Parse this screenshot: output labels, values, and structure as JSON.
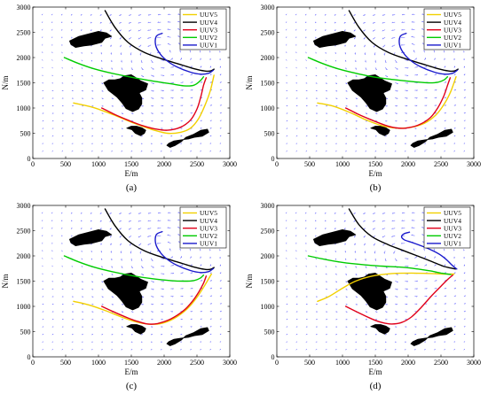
{
  "colors": {
    "UUV5": "#f2d000",
    "UUV4": "#000000",
    "UUV3": "#e0001a",
    "UUV2": "#00cc00",
    "UUV1": "#1a1acc",
    "flow_arrows": "#7070ff",
    "islands": "#000000",
    "axes": "#000000"
  },
  "chart_data": [
    {
      "type": "line",
      "panel_label": "(a)",
      "xlabel": "E/m",
      "ylabel": "N/m",
      "xlim": [
        0,
        3000
      ],
      "ylim": [
        0,
        3000
      ],
      "xticks": [
        0,
        500,
        1000,
        1500,
        2000,
        2500,
        3000
      ],
      "yticks": [
        0,
        500,
        1000,
        1500,
        2000,
        2500,
        3000
      ],
      "legend_position": "top-right",
      "series": [
        {
          "name": "UUV5",
          "x": [
            620,
            900,
            1200,
            1500,
            1800,
            2050,
            2250,
            2400,
            2520,
            2620,
            2700,
            2760
          ],
          "y": [
            1100,
            1020,
            880,
            720,
            580,
            500,
            520,
            600,
            780,
            1050,
            1330,
            1650
          ]
        },
        {
          "name": "UUV4",
          "x": [
            1100,
            1250,
            1450,
            1700,
            1950,
            2200,
            2400,
            2550,
            2650,
            2720,
            2760
          ],
          "y": [
            2930,
            2600,
            2300,
            2100,
            1980,
            1880,
            1800,
            1750,
            1730,
            1740,
            1770
          ]
        },
        {
          "name": "UUV3",
          "x": [
            1050,
            1250,
            1450,
            1650,
            1850,
            2050,
            2250,
            2400,
            2500,
            2560,
            2600,
            2640
          ],
          "y": [
            1000,
            870,
            760,
            660,
            590,
            560,
            620,
            760,
            980,
            1230,
            1450,
            1600
          ]
        },
        {
          "name": "UUV2",
          "x": [
            480,
            700,
            950,
            1200,
            1500,
            1800,
            2100,
            2300,
            2450,
            2550,
            2600
          ],
          "y": [
            2000,
            1880,
            1770,
            1690,
            1610,
            1540,
            1480,
            1440,
            1450,
            1540,
            1620
          ]
        },
        {
          "name": "UUV1",
          "x": [
            1970,
            1880,
            1870,
            1940,
            2050,
            2200,
            2400,
            2560,
            2680,
            2750
          ],
          "y": [
            2480,
            2420,
            2250,
            2070,
            1930,
            1810,
            1710,
            1670,
            1690,
            1750
          ]
        }
      ]
    },
    {
      "type": "line",
      "panel_label": "(b)",
      "xlabel": "E/m",
      "ylabel": "N/m",
      "xlim": [
        0,
        3000
      ],
      "ylim": [
        0,
        3000
      ],
      "xticks": [
        0,
        500,
        1000,
        1500,
        2000,
        2500,
        3000
      ],
      "yticks": [
        0,
        500,
        1000,
        1500,
        2000,
        2500,
        3000
      ],
      "legend_position": "top-right",
      "series": [
        {
          "name": "UUV5",
          "x": [
            620,
            850,
            1100,
            1350,
            1600,
            1850,
            2050,
            2250,
            2420,
            2550,
            2650,
            2730
          ],
          "y": [
            1100,
            1040,
            920,
            770,
            650,
            600,
            620,
            700,
            860,
            1080,
            1330,
            1620
          ]
        },
        {
          "name": "UUV4",
          "x": [
            1100,
            1250,
            1450,
            1700,
            1950,
            2200,
            2400,
            2550,
            2650,
            2720,
            2760
          ],
          "y": [
            2930,
            2600,
            2300,
            2100,
            1980,
            1880,
            1800,
            1750,
            1730,
            1740,
            1770
          ]
        },
        {
          "name": "UUV3",
          "x": [
            1050,
            1250,
            1450,
            1650,
            1800,
            1950,
            2150,
            2330,
            2450,
            2540,
            2600,
            2640
          ],
          "y": [
            1000,
            870,
            760,
            660,
            610,
            600,
            660,
            800,
            1000,
            1230,
            1450,
            1600
          ]
        },
        {
          "name": "UUV2",
          "x": [
            480,
            700,
            950,
            1200,
            1500,
            1800,
            2100,
            2300,
            2450,
            2550,
            2600
          ],
          "y": [
            2000,
            1880,
            1770,
            1690,
            1610,
            1560,
            1520,
            1500,
            1510,
            1560,
            1620
          ]
        },
        {
          "name": "UUV1",
          "x": [
            1970,
            1880,
            1870,
            1940,
            2050,
            2200,
            2400,
            2560,
            2680,
            2750
          ],
          "y": [
            2480,
            2420,
            2250,
            2070,
            1930,
            1810,
            1710,
            1670,
            1690,
            1750
          ]
        }
      ]
    },
    {
      "type": "line",
      "panel_label": "(c)",
      "xlabel": "E/m",
      "ylabel": "N/m",
      "xlim": [
        0,
        3000
      ],
      "ylim": [
        0,
        3000
      ],
      "xticks": [
        0,
        500,
        1000,
        1500,
        2000,
        2500,
        3000
      ],
      "yticks": [
        0,
        500,
        1000,
        1500,
        2000,
        2500,
        3000
      ],
      "legend_position": "top-right",
      "series": [
        {
          "name": "UUV5",
          "x": [
            620,
            850,
            1100,
            1350,
            1550,
            1750,
            1950,
            2150,
            2350,
            2500,
            2620,
            2720
          ],
          "y": [
            1100,
            1030,
            920,
            790,
            700,
            650,
            660,
            760,
            950,
            1180,
            1420,
            1640
          ]
        },
        {
          "name": "UUV4",
          "x": [
            1100,
            1250,
            1450,
            1700,
            1950,
            2200,
            2400,
            2550,
            2650,
            2720,
            2760
          ],
          "y": [
            2930,
            2600,
            2300,
            2100,
            1980,
            1880,
            1800,
            1750,
            1730,
            1740,
            1770
          ]
        },
        {
          "name": "UUV3",
          "x": [
            1050,
            1250,
            1450,
            1600,
            1750,
            1900,
            2100,
            2300,
            2430,
            2530,
            2600,
            2640
          ],
          "y": [
            1000,
            880,
            770,
            700,
            650,
            660,
            750,
            920,
            1100,
            1290,
            1460,
            1600
          ]
        },
        {
          "name": "UUV2",
          "x": [
            480,
            700,
            950,
            1200,
            1500,
            1800,
            2100,
            2300,
            2450,
            2550,
            2600
          ],
          "y": [
            2000,
            1880,
            1770,
            1690,
            1610,
            1550,
            1510,
            1500,
            1510,
            1560,
            1620
          ]
        },
        {
          "name": "UUV1",
          "x": [
            1970,
            1880,
            1870,
            1940,
            2050,
            2200,
            2400,
            2560,
            2680,
            2750
          ],
          "y": [
            2480,
            2420,
            2250,
            2070,
            1930,
            1810,
            1710,
            1670,
            1690,
            1750
          ]
        }
      ]
    },
    {
      "type": "line",
      "panel_label": "(d)",
      "xlabel": "E/m",
      "ylabel": "N/m",
      "xlim": [
        0,
        3000
      ],
      "ylim": [
        0,
        3000
      ],
      "xticks": [
        0,
        500,
        1000,
        1500,
        2000,
        2500,
        3000
      ],
      "yticks": [
        0,
        500,
        1000,
        1500,
        2000,
        2500,
        3000
      ],
      "legend_position": "top-right",
      "series": [
        {
          "name": "UUV5",
          "x": [
            620,
            800,
            1000,
            1200,
            1450,
            1750,
            2050,
            2350,
            2550,
            2650,
            2700
          ],
          "y": [
            1100,
            1200,
            1360,
            1500,
            1600,
            1650,
            1660,
            1650,
            1640,
            1640,
            1640
          ]
        },
        {
          "name": "UUV4",
          "x": [
            1100,
            1250,
            1450,
            1700,
            1900,
            2100,
            2300,
            2450,
            2550,
            2650,
            2720
          ],
          "y": [
            2930,
            2620,
            2380,
            2220,
            2120,
            2020,
            1920,
            1840,
            1790,
            1760,
            1740
          ]
        },
        {
          "name": "UUV3",
          "x": [
            1050,
            1250,
            1450,
            1600,
            1750,
            1900,
            2050,
            2200,
            2350,
            2500,
            2600,
            2680
          ],
          "y": [
            1000,
            870,
            750,
            680,
            650,
            680,
            790,
            980,
            1200,
            1400,
            1530,
            1620
          ]
        },
        {
          "name": "UUV2",
          "x": [
            480,
            700,
            950,
            1200,
            1450,
            1700,
            1950,
            2150,
            2350,
            2500,
            2600,
            2650
          ],
          "y": [
            2000,
            1940,
            1880,
            1840,
            1810,
            1790,
            1770,
            1740,
            1700,
            1660,
            1640,
            1630
          ]
        },
        {
          "name": "UUV1",
          "x": [
            2020,
            1940,
            1900,
            1940,
            2050,
            2200,
            2350,
            2480,
            2580,
            2650,
            2700,
            2740
          ],
          "y": [
            2470,
            2440,
            2380,
            2320,
            2270,
            2200,
            2120,
            2030,
            1930,
            1840,
            1780,
            1740
          ]
        }
      ]
    }
  ]
}
